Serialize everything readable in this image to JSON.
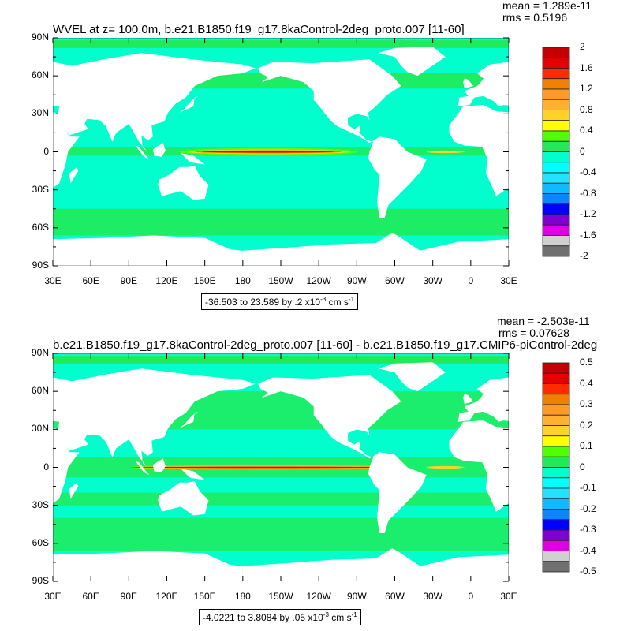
{
  "axes": {
    "lat_labels": [
      "90N",
      "60N",
      "30N",
      "0",
      "30S",
      "60S",
      "90S"
    ],
    "lon_labels": [
      "30E",
      "60E",
      "90E",
      "120E",
      "150E",
      "180",
      "150W",
      "120W",
      "90W",
      "60W",
      "30W",
      "0",
      "30E"
    ]
  },
  "panels": [
    {
      "title": "WVEL at z= 100.0m, b.e21.B1850.f19_g17.8kaControl-2deg_proto.007 [11-60]",
      "mean": "mean = 1.289e-11",
      "rms": "rms = 0.5196",
      "range": {
        "text": "-36.503 to 23.589 by .2 x10",
        "exp": "-3",
        "unit": " cm s",
        "unit_exp": "-1"
      },
      "colorbar_labels": [
        "2",
        "1.6",
        "1.2",
        "0.8",
        "0.4",
        "0",
        "-0.4",
        "-0.8",
        "-1.2",
        "-1.6",
        "-2"
      ]
    },
    {
      "title": "b.e21.B1850.f19_g17.8kaControl-2deg_proto.007 [11-60] - b.e21.B1850.f19_g17.CMIP6-piControl-2deg",
      "mean": "mean = -2.503e-11",
      "rms": "rms = 0.07628",
      "range": {
        "text": "-4.0221 to 3.8084 by .05 x10",
        "exp": "-3",
        "unit": " cm s",
        "unit_exp": "-1"
      },
      "colorbar_labels": [
        "0.5",
        "0.4",
        "0.3",
        "0.2",
        "0.1",
        "0",
        "-0.1",
        "-0.2",
        "-0.3",
        "-0.4",
        "-0.5"
      ]
    }
  ],
  "colors": {
    "colorbar": [
      "#c40000",
      "#e40000",
      "#ff2a00",
      "#f08000",
      "#ff9a28",
      "#ffb030",
      "#ffd22a",
      "#ffff00",
      "#50ff00",
      "#20ea5a",
      "#00ffcc",
      "#00ffff",
      "#22e2ff",
      "#10baff",
      "#0a86ff",
      "#0000ff",
      "#8000d0",
      "#e000e8",
      "#d0d0d0",
      "#707070"
    ],
    "ocean": "#00ffcc",
    "band": "#20ea5a",
    "land": "#ffffff"
  }
}
